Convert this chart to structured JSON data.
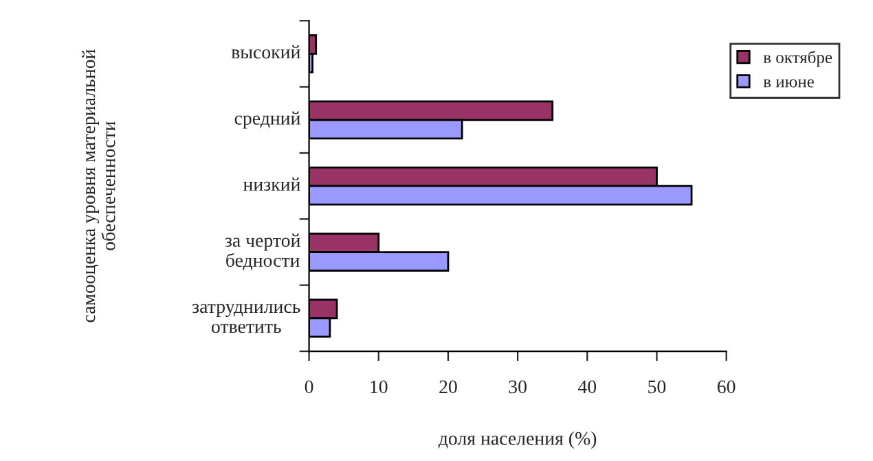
{
  "chart_data": {
    "type": "bar",
    "orientation": "horizontal",
    "categories": [
      "высокий",
      "средний",
      "низкий",
      "за чертой\nбедности",
      "затруднились\nответить"
    ],
    "series": [
      {
        "name": "в октябре",
        "color": "#993366",
        "values": [
          1,
          35,
          50,
          10,
          4
        ]
      },
      {
        "name": "в июне",
        "color": "#9999ff",
        "values": [
          0.5,
          22,
          55,
          20,
          3
        ]
      }
    ],
    "xlabel": "доля населения (%)",
    "ylabel": "самооценка уровня материальной обеспеченности",
    "xlim": [
      0,
      60
    ],
    "xticks": [
      0,
      10,
      20,
      30,
      40,
      50,
      60
    ],
    "grid": false,
    "legend": "top right"
  }
}
